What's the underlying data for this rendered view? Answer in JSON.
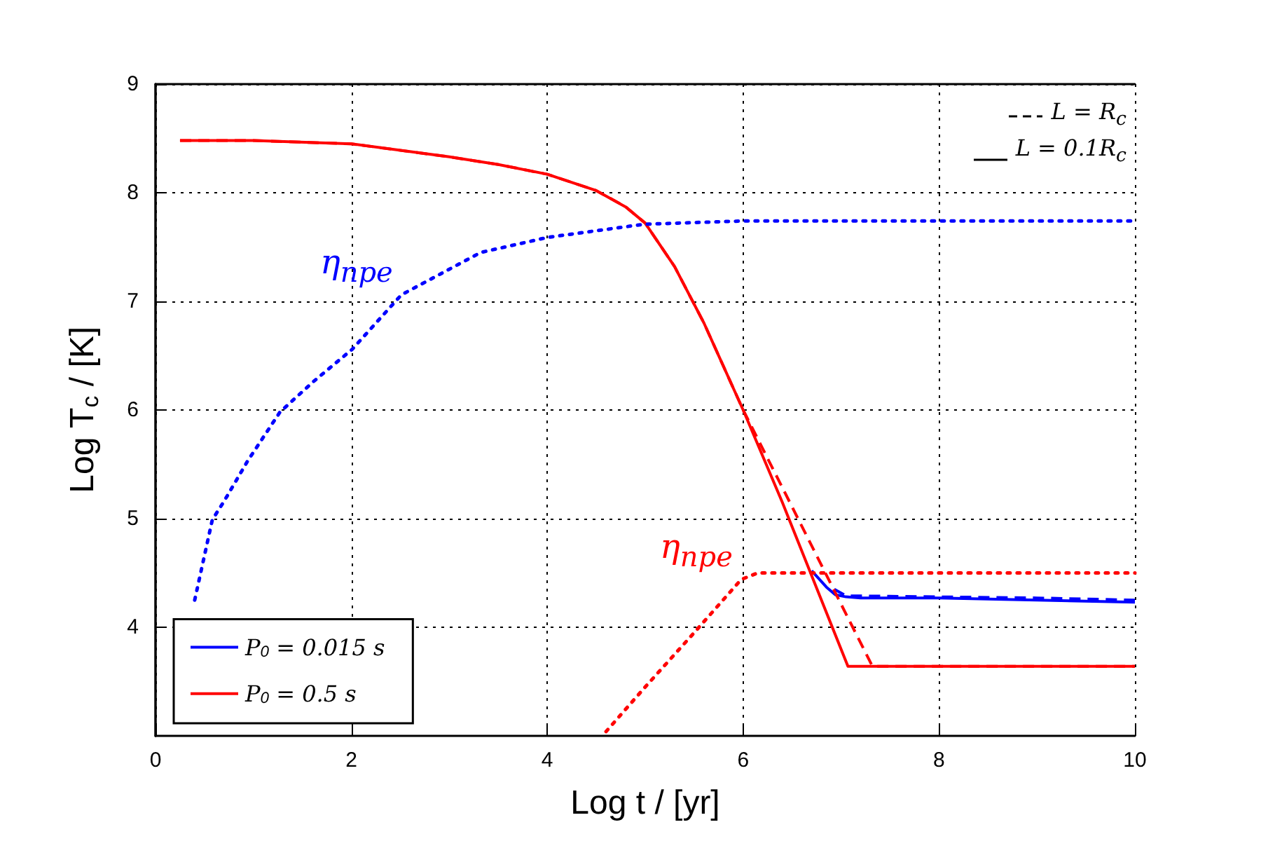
{
  "chart_data": {
    "type": "line",
    "xlabel": "Log t / [yr]",
    "ylabel": "Log T$_{c}$ / [K]",
    "xlim": [
      0,
      10
    ],
    "xticks": [
      0,
      2,
      4,
      6,
      8,
      10
    ],
    "ylim": [
      3,
      9
    ],
    "yticks": [
      4,
      5,
      6,
      7,
      8,
      9
    ],
    "grid": true,
    "legend": "bottom left",
    "marker": "none",
    "annotations": [
      "L = R$_{c}$",
      "L = 0.1R$_{c}$"
    ],
    "series": [
      {
        "name": "P$_{0}$ = 0.015 s",
        "color": "#0000ff",
        "line_style": "solid",
        "x": [
          6.7,
          6.85,
          6.94,
          7.05,
          7.2,
          8,
          9,
          10
        ],
        "values": [
          4.52,
          4.37,
          4.3,
          4.28,
          4.27,
          4.27,
          4.25,
          4.23
        ]
      },
      {
        "color": "#0000ff",
        "line_style": "dashed",
        "x": [
          6.93,
          7.05,
          8,
          9,
          10
        ],
        "values": [
          4.35,
          4.29,
          4.28,
          4.27,
          4.25
        ]
      },
      {
        "name": "P$_{0}$ = 0.5 s",
        "color": "#ff0000",
        "line_style": "solid",
        "x": [
          0.25,
          1,
          2,
          3,
          3.5,
          4,
          4.5,
          4.8,
          5,
          5.3,
          5.6,
          6,
          6.4,
          7.07,
          8,
          10
        ],
        "values": [
          8.48,
          8.48,
          8.45,
          8.33,
          8.26,
          8.17,
          8.02,
          7.87,
          7.72,
          7.32,
          6.8,
          6.0,
          5.15,
          3.64,
          3.64,
          3.64
        ]
      },
      {
        "color": "#ff0000",
        "line_style": "dashed",
        "x": [
          0.25,
          1,
          2,
          3,
          3.5,
          4,
          4.5,
          4.8,
          5,
          5.3,
          5.6,
          6,
          6.37,
          7.32,
          8,
          10
        ],
        "values": [
          8.48,
          8.48,
          8.45,
          8.33,
          8.26,
          8.17,
          8.02,
          7.87,
          7.72,
          7.32,
          6.8,
          6.0,
          5.34,
          3.64,
          3.64,
          3.64
        ]
      },
      {
        "name": "η$_{npe}$",
        "color": "#0000ff",
        "line_style": "dotted",
        "x": [
          0.4,
          0.58,
          0.7,
          0.94,
          1.27,
          1.61,
          2.01,
          2.51,
          3.32,
          4.01,
          4.99,
          6,
          8,
          10
        ],
        "values": [
          4.25,
          4.99,
          5.16,
          5.53,
          5.98,
          6.26,
          6.56,
          7.06,
          7.45,
          7.59,
          7.71,
          7.74,
          7.74,
          7.74
        ]
      },
      {
        "name": "η$_{npe}$",
        "color": "#ff0000",
        "line_style": "dotted",
        "x": [
          4.6,
          5.0,
          5.5,
          5.98,
          6.15,
          8,
          10
        ],
        "values": [
          3.04,
          3.45,
          3.95,
          4.44,
          4.5,
          4.5,
          4.5
        ]
      }
    ]
  }
}
